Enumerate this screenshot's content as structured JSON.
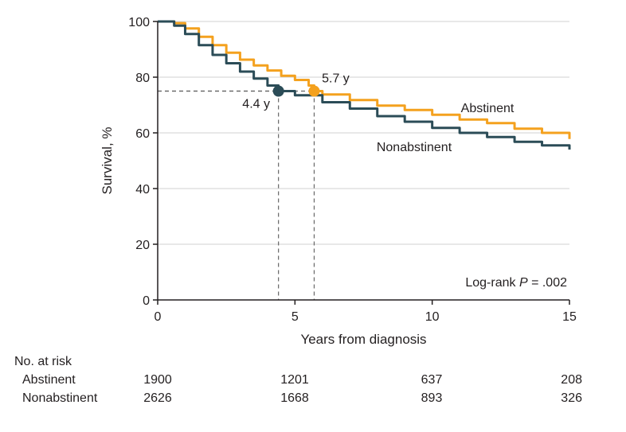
{
  "chart_data": {
    "type": "line",
    "xlabel": "Years from diagnosis",
    "ylabel": "Survival, %",
    "xlim": [
      0,
      15
    ],
    "ylim": [
      0,
      100
    ],
    "xticks": [
      0,
      5,
      10,
      15
    ],
    "yticks": [
      0,
      20,
      40,
      60,
      80,
      100
    ],
    "grid": "horizontal",
    "colors": {
      "abstinent": "#f4a11e",
      "nonabstinent": "#2b4c57",
      "grid": "#d0d0d0",
      "guide": "#666666"
    },
    "series": [
      {
        "name": "Abstinent",
        "color": "#f4a11e",
        "points": [
          [
            0,
            100
          ],
          [
            0.3,
            100
          ],
          [
            0.6,
            99.4
          ],
          [
            1,
            97.5
          ],
          [
            1.5,
            94.5
          ],
          [
            2,
            91.5
          ],
          [
            2.5,
            88.8
          ],
          [
            3,
            86.3
          ],
          [
            3.5,
            84.2
          ],
          [
            4,
            82.4
          ],
          [
            4.5,
            80.5
          ],
          [
            5,
            79
          ],
          [
            5.5,
            77
          ],
          [
            5.7,
            75
          ],
          [
            6,
            73.8
          ],
          [
            7,
            71.8
          ],
          [
            8,
            69.8
          ],
          [
            9,
            68.2
          ],
          [
            10,
            66.5
          ],
          [
            11,
            64.8
          ],
          [
            12,
            63.5
          ],
          [
            13,
            61.5
          ],
          [
            14,
            60
          ],
          [
            15,
            57.8
          ]
        ]
      },
      {
        "name": "Nonabstinent",
        "color": "#2b4c57",
        "points": [
          [
            0,
            100
          ],
          [
            0.3,
            100
          ],
          [
            0.6,
            98.5
          ],
          [
            1,
            95.5
          ],
          [
            1.5,
            91.5
          ],
          [
            2,
            88
          ],
          [
            2.5,
            85
          ],
          [
            3,
            82
          ],
          [
            3.5,
            79.5
          ],
          [
            4,
            77
          ],
          [
            4.4,
            75
          ],
          [
            5,
            73.5
          ],
          [
            6,
            71
          ],
          [
            7,
            68.7
          ],
          [
            8,
            66
          ],
          [
            9,
            64
          ],
          [
            10,
            61.8
          ],
          [
            11,
            60
          ],
          [
            12,
            58.5
          ],
          [
            13,
            56.8
          ],
          [
            14,
            55.5
          ],
          [
            15,
            54
          ]
        ]
      }
    ],
    "medians": [
      {
        "label": "4.4 y",
        "x": 4.4,
        "y": 75,
        "color": "#2b4c57"
      },
      {
        "label": "5.7 y",
        "x": 5.7,
        "y": 75,
        "color": "#f4a11e"
      }
    ],
    "annotation": {
      "text_prefix": "Log-rank ",
      "p_symbol": "P",
      "text_suffix": " = .002"
    }
  },
  "risk_table": {
    "title": "No. at risk",
    "rows": [
      {
        "label": "Abstinent",
        "values": [
          "1900",
          "1201",
          "637",
          "208"
        ]
      },
      {
        "label": "Nonabstinent",
        "values": [
          "2626",
          "1668",
          "893",
          "326"
        ]
      }
    ]
  }
}
